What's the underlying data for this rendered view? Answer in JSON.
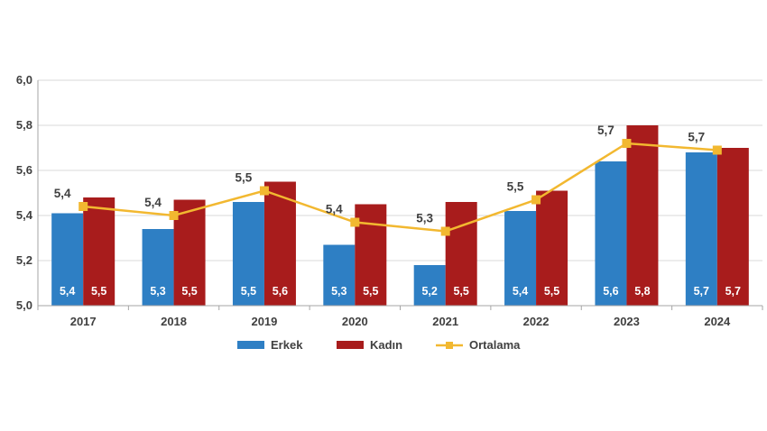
{
  "chart_data": {
    "type": "bar",
    "categories": [
      "2017",
      "2018",
      "2019",
      "2020",
      "2021",
      "2022",
      "2023",
      "2024"
    ],
    "series": [
      {
        "name": "Erkek",
        "type": "bar",
        "values": [
          5.41,
          5.34,
          5.46,
          5.27,
          5.18,
          5.42,
          5.64,
          5.68
        ],
        "labels": [
          "5,4",
          "5,3",
          "5,5",
          "5,3",
          "5,2",
          "5,4",
          "5,6",
          "5,7"
        ]
      },
      {
        "name": "Kadın",
        "type": "bar",
        "values": [
          5.48,
          5.47,
          5.55,
          5.45,
          5.46,
          5.51,
          5.8,
          5.7
        ],
        "labels": [
          "5,5",
          "5,5",
          "5,6",
          "5,5",
          "5,5",
          "5,5",
          "5,8",
          "5,7"
        ]
      },
      {
        "name": "Ortalama",
        "type": "line",
        "values": [
          5.44,
          5.4,
          5.51,
          5.37,
          5.33,
          5.47,
          5.72,
          5.69
        ],
        "labels": [
          "5,4",
          "5,4",
          "5,5",
          "5,4",
          "5,3",
          "5,5",
          "5,7",
          "5,7"
        ]
      }
    ],
    "y_ticks": [
      "5,0",
      "5,2",
      "5,4",
      "5,6",
      "5,8",
      "6,0"
    ],
    "ylim": [
      5.0,
      6.0
    ],
    "grid": "horizontal",
    "legend_position": "bottom",
    "colors": {
      "Erkek": "#2e7fc4",
      "Kadın": "#a81c1c",
      "Ortalama": "#f2b830",
      "grid": "#d9d9d9",
      "axis": "#a6a6a6",
      "text": "#404040"
    }
  }
}
